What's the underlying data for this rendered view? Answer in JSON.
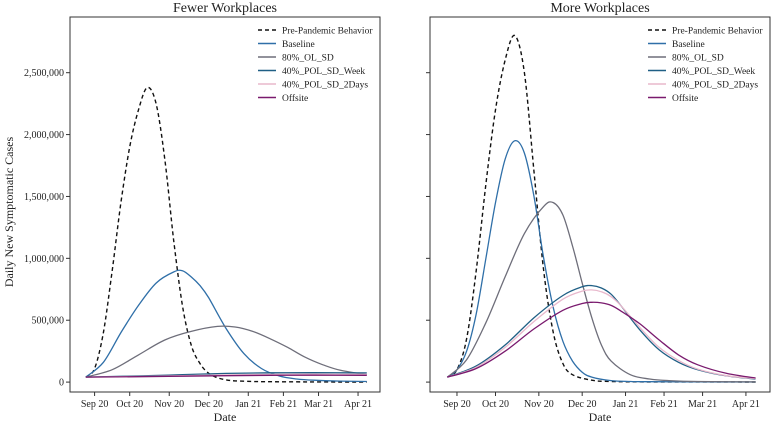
{
  "ylabel": "Daily New Symptomatic Cases",
  "xlabel": "Date",
  "legend_labels": [
    "Pre-Pandemic Behavior",
    "Baseline",
    "80%_OL_SD",
    "40%_POL_SD_Week",
    "40%_POL_SD_2Days",
    "Offsite"
  ],
  "colors": {
    "Pre-Pandemic Behavior": "#111111",
    "Baseline": "#2f6fa8",
    "80%_OL_SD": "#6e6e7a",
    "40%_POL_SD_Week": "#1f5f85",
    "40%_POL_SD_2Days": "#e8b8cc",
    "Offsite": "#7a1a6e"
  },
  "chart_data": [
    {
      "type": "line",
      "title": "Fewer Workplaces",
      "xlabel": "Date",
      "ylabel": "Daily New Symptomatic Cases",
      "x_unit": "weeks since Sep 20",
      "x_ticks": [
        0,
        4,
        8.5,
        13,
        17.5,
        21.5,
        25.5,
        30
      ],
      "x_tick_labels": [
        "Sep 20",
        "Oct 20",
        "Nov 20",
        "Dec 20",
        "Jan 21",
        "Feb 21",
        "Mar 21",
        "Apr 21"
      ],
      "xlim": [
        -2.8,
        32.5
      ],
      "y_ticks": [
        0,
        500000,
        1000000,
        1500000,
        2000000,
        2500000
      ],
      "y_tick_labels": [
        "0",
        "500,000",
        "1,000,000",
        "1,500,000",
        "2,000,000",
        "2,500,000"
      ],
      "ylim": [
        -80000,
        2950000
      ],
      "legend_position": "top-right",
      "series": [
        {
          "name": "Pre-Pandemic Behavior",
          "dash": true,
          "x": [
            -1,
            0,
            1,
            2,
            3,
            4,
            5,
            6,
            7,
            8,
            9,
            10,
            11,
            12,
            13,
            14,
            15,
            16,
            18,
            20,
            24,
            28,
            31
          ],
          "y": [
            40000,
            110000,
            400000,
            900000,
            1450000,
            1900000,
            2200000,
            2380000,
            2250000,
            1800000,
            1150000,
            620000,
            300000,
            150000,
            70000,
            35000,
            18000,
            10000,
            5000,
            3000,
            2000,
            1000,
            1000
          ]
        },
        {
          "name": "Baseline",
          "dash": false,
          "x": [
            -1,
            1,
            3,
            5,
            7,
            9,
            10,
            11,
            12,
            13,
            15,
            17,
            19,
            21,
            23,
            25,
            28,
            31
          ],
          "y": [
            40000,
            160000,
            400000,
            620000,
            800000,
            890000,
            900000,
            850000,
            780000,
            680000,
            430000,
            230000,
            110000,
            50000,
            25000,
            15000,
            8000,
            5000
          ]
        },
        {
          "name": "80%_OL_SD",
          "dash": false,
          "x": [
            -1,
            2,
            5,
            8,
            11,
            14,
            16,
            18,
            20,
            22,
            24,
            26,
            28,
            31
          ],
          "y": [
            40000,
            100000,
            220000,
            340000,
            410000,
            450000,
            445000,
            410000,
            350000,
            280000,
            200000,
            140000,
            95000,
            60000
          ]
        },
        {
          "name": "40%_POL_SD_Week",
          "dash": false,
          "x": [
            -1,
            5,
            10,
            15,
            20,
            25,
            31
          ],
          "y": [
            40000,
            50000,
            60000,
            70000,
            75000,
            76000,
            74000
          ]
        },
        {
          "name": "40%_POL_SD_2Days",
          "dash": false,
          "x": [
            -1,
            5,
            10,
            15,
            20,
            25,
            31
          ],
          "y": [
            40000,
            46000,
            52000,
            58000,
            62000,
            64000,
            63000
          ]
        },
        {
          "name": "Offsite",
          "dash": false,
          "x": [
            -1,
            5,
            10,
            15,
            20,
            25,
            31
          ],
          "y": [
            40000,
            44000,
            48000,
            52000,
            55000,
            56000,
            55000
          ]
        }
      ]
    },
    {
      "type": "line",
      "title": "More Workplaces",
      "xlabel": "Date",
      "ylabel": "",
      "x_unit": "weeks since Sep 20",
      "x_ticks": [
        0,
        4,
        8.5,
        13,
        17.5,
        21.5,
        25.5,
        30
      ],
      "x_tick_labels": [
        "Sep 20",
        "Oct 20",
        "Nov 20",
        "Dec 20",
        "Jan 21",
        "Feb 21",
        "Mar 21",
        "Apr 21"
      ],
      "xlim": [
        -2.8,
        32.5
      ],
      "y_ticks": [
        0,
        500000,
        1000000,
        1500000,
        2000000,
        2500000
      ],
      "ylim": [
        -80000,
        2950000
      ],
      "legend_position": "top-right",
      "series": [
        {
          "name": "Pre-Pandemic Behavior",
          "dash": true,
          "x": [
            -1,
            0,
            1,
            2,
            3,
            4,
            5,
            6,
            7,
            8,
            9,
            10,
            11,
            12,
            14,
            16,
            20,
            31
          ],
          "y": [
            40000,
            100000,
            350000,
            900000,
            1600000,
            2200000,
            2600000,
            2800000,
            2500000,
            1700000,
            900000,
            400000,
            150000,
            60000,
            15000,
            5000,
            2000,
            1000
          ]
        },
        {
          "name": "Baseline",
          "dash": false,
          "x": [
            -1,
            0,
            1,
            2,
            3,
            4,
            5,
            6,
            7,
            8,
            9,
            10,
            11,
            12,
            13,
            14,
            16,
            18,
            20,
            25,
            31
          ],
          "y": [
            40000,
            100000,
            250000,
            550000,
            1000000,
            1450000,
            1800000,
            1950000,
            1850000,
            1500000,
            1000000,
            600000,
            330000,
            170000,
            80000,
            40000,
            12000,
            5000,
            3000,
            2000,
            1000
          ]
        },
        {
          "name": "80%_OL_SD",
          "dash": false,
          "x": [
            -1,
            1,
            3,
            5,
            7,
            9,
            10,
            11,
            12,
            13,
            14,
            15,
            16,
            18,
            20,
            22,
            25,
            31
          ],
          "y": [
            40000,
            180000,
            480000,
            850000,
            1200000,
            1420000,
            1450000,
            1350000,
            1100000,
            800000,
            520000,
            300000,
            170000,
            60000,
            25000,
            12000,
            5000,
            2000
          ]
        },
        {
          "name": "40%_POL_SD_Week",
          "dash": false,
          "x": [
            -1,
            2,
            5,
            8,
            11,
            13,
            14,
            15,
            16,
            17,
            19,
            21,
            23,
            25,
            28,
            31
          ],
          "y": [
            40000,
            130000,
            300000,
            520000,
            700000,
            770000,
            780000,
            760000,
            710000,
            620000,
            420000,
            260000,
            160000,
            100000,
            50000,
            25000
          ]
        },
        {
          "name": "40%_POL_SD_2Days",
          "dash": false,
          "x": [
            -1,
            2,
            5,
            8,
            11,
            13,
            14,
            15,
            16,
            17,
            19,
            21,
            23,
            25,
            28,
            31
          ],
          "y": [
            40000,
            120000,
            280000,
            490000,
            670000,
            735000,
            745000,
            730000,
            690000,
            620000,
            440000,
            280000,
            175000,
            105000,
            52000,
            28000
          ]
        },
        {
          "name": "Offsite",
          "dash": false,
          "x": [
            -1,
            2,
            5,
            8,
            11,
            13,
            14,
            15,
            16,
            17,
            19,
            21,
            23,
            25,
            28,
            31
          ],
          "y": [
            40000,
            110000,
            250000,
            430000,
            580000,
            635000,
            645000,
            640000,
            620000,
            575000,
            470000,
            340000,
            220000,
            140000,
            70000,
            33000
          ]
        }
      ]
    }
  ]
}
